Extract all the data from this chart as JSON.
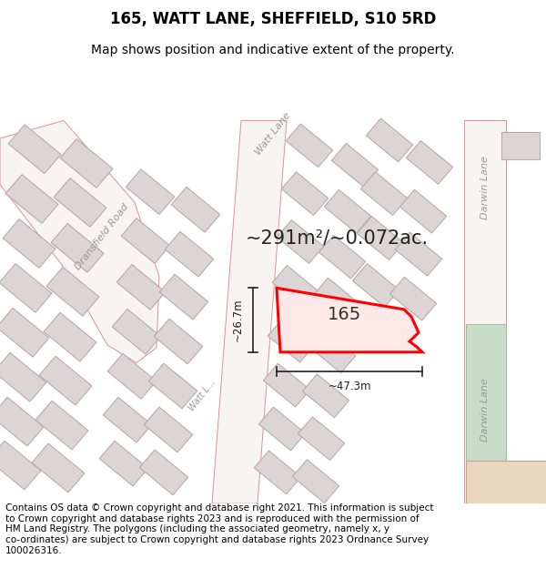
{
  "title": "165, WATT LANE, SHEFFIELD, S10 5RD",
  "subtitle": "Map shows position and indicative extent of the property.",
  "footer": "Contains OS data © Crown copyright and database right 2021. This information is subject\nto Crown copyright and database rights 2023 and is reproduced with the permission of\nHM Land Registry. The polygons (including the associated geometry, namely x, y\nco-ordinates) are subject to Crown copyright and database rights 2023 Ordnance Survey\n100026316.",
  "area_text": "~291m²/~0.072ac.",
  "dim_width": "~47.3m",
  "dim_height": "~26.7m",
  "label_165": "165",
  "bg_color": "#ffffff",
  "map_bg": "#f5eeee",
  "road_fill": "#f8f4f4",
  "road_edge": "#e09090",
  "building_fill": "#ddd5d5",
  "building_edge": "#bbaaaa",
  "highlight_fill": "#ffe8e8",
  "highlight_edge": "#ff0000",
  "green_fill": "#c8dcc8",
  "green_edge": "#a0bfa0",
  "beige_fill": "#e8d8c0",
  "beige_edge": "#c0a888",
  "road_label_color": "#999999",
  "dim_color": "#222222",
  "title_fontsize": 12,
  "subtitle_fontsize": 10,
  "footer_fontsize": 7.5,
  "area_fontsize": 15,
  "label_fontsize": 14,
  "road_fontsize": 8,
  "dim_fontsize": 8.5
}
